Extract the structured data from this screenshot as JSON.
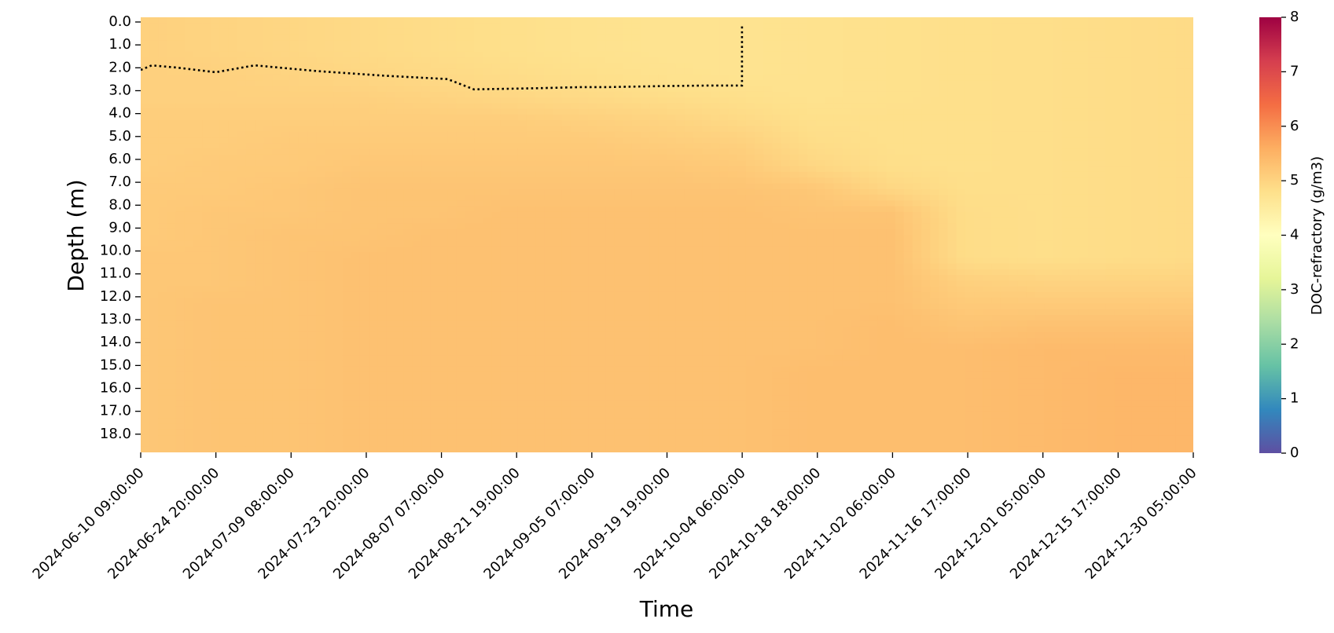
{
  "chart_data": {
    "type": "heatmap",
    "title": "",
    "xlabel": "Time",
    "ylabel": "Depth (m)",
    "colorbar": {
      "label": "DOC-refractory  (g/m3)",
      "min": 0,
      "max": 8,
      "ticks": [
        "0",
        "1",
        "2",
        "3",
        "4",
        "5",
        "6",
        "7",
        "8"
      ],
      "colormap": "Spectral_r",
      "stops": [
        {
          "v": 0,
          "color": "#5e4fa2"
        },
        {
          "v": 0.8,
          "color": "#3288bd"
        },
        {
          "v": 1.6,
          "color": "#66c2a5"
        },
        {
          "v": 2.4,
          "color": "#abdda4"
        },
        {
          "v": 3.2,
          "color": "#e6f598"
        },
        {
          "v": 4.0,
          "color": "#ffffbf"
        },
        {
          "v": 4.8,
          "color": "#fee08b"
        },
        {
          "v": 5.6,
          "color": "#fdae61"
        },
        {
          "v": 6.4,
          "color": "#f46d43"
        },
        {
          "v": 7.2,
          "color": "#d53e4f"
        },
        {
          "v": 8,
          "color": "#9e0142"
        }
      ]
    },
    "x_tick_labels": [
      "2024-06-10 09:00:00",
      "2024-06-24 20:00:00",
      "2024-07-09 08:00:00",
      "2024-07-23 20:00:00",
      "2024-08-07 07:00:00",
      "2024-08-21 19:00:00",
      "2024-09-05 07:00:00",
      "2024-09-19 19:00:00",
      "2024-10-04 06:00:00",
      "2024-10-18 18:00:00",
      "2024-11-02 06:00:00",
      "2024-11-16 17:00:00",
      "2024-12-01 05:00:00",
      "2024-12-15 17:00:00",
      "2024-12-30 05:00:00"
    ],
    "y_tick_labels": [
      "0.0",
      "1.0",
      "2.0",
      "3.0",
      "4.0",
      "5.0",
      "6.0",
      "7.0",
      "8.0",
      "9.0",
      "10.0",
      "11.0",
      "12.0",
      "13.0",
      "14.0",
      "15.0",
      "16.0",
      "17.0",
      "18.0"
    ],
    "depth_range_m": [
      0,
      19
    ],
    "time_range": [
      "2024-06-10 09:00:00",
      "2024-12-30 05:00:00"
    ],
    "time_profiles": [
      "2024-06-10",
      "2024-06-24",
      "2024-07-09",
      "2024-07-23",
      "2024-08-07",
      "2024-08-21",
      "2024-09-05",
      "2024-09-19",
      "2024-10-04",
      "2024-10-18",
      "2024-11-02",
      "2024-11-16",
      "2024-12-01",
      "2024-12-15",
      "2024-12-30"
    ],
    "depth_profile_m": [
      0.5,
      1.5,
      2.5,
      3.5,
      4.5,
      5.5,
      6.5,
      7.5,
      8.5,
      9.5,
      10.5,
      11.5,
      12.5,
      13.5,
      14.5,
      15.5,
      16.5,
      17.5,
      18.5
    ],
    "values": [
      [
        5.05,
        5.05,
        5.05,
        5.05,
        5.1,
        5.1,
        5.1,
        5.15,
        5.15,
        5.15,
        5.2,
        5.2,
        5.2,
        5.2,
        5.2,
        5.2,
        5.2,
        5.2,
        5.2
      ],
      [
        5.0,
        5.0,
        5.05,
        5.05,
        5.1,
        5.1,
        5.15,
        5.15,
        5.2,
        5.2,
        5.2,
        5.2,
        5.25,
        5.25,
        5.25,
        5.25,
        5.25,
        5.25,
        5.25
      ],
      [
        4.95,
        4.95,
        5.0,
        5.05,
        5.1,
        5.15,
        5.15,
        5.2,
        5.2,
        5.25,
        5.25,
        5.25,
        5.25,
        5.25,
        5.25,
        5.25,
        5.25,
        5.25,
        5.25
      ],
      [
        4.9,
        4.9,
        4.95,
        5.05,
        5.1,
        5.15,
        5.2,
        5.25,
        5.25,
        5.25,
        5.3,
        5.3,
        5.3,
        5.3,
        5.3,
        5.3,
        5.3,
        5.3,
        5.3
      ],
      [
        4.85,
        4.85,
        4.9,
        5.0,
        5.1,
        5.15,
        5.2,
        5.25,
        5.25,
        5.3,
        5.3,
        5.3,
        5.3,
        5.3,
        5.3,
        5.3,
        5.3,
        5.3,
        5.3
      ],
      [
        4.8,
        4.8,
        4.85,
        4.95,
        5.1,
        5.15,
        5.2,
        5.25,
        5.3,
        5.3,
        5.3,
        5.3,
        5.3,
        5.3,
        5.3,
        5.3,
        5.3,
        5.3,
        5.3
      ],
      [
        4.75,
        4.75,
        4.8,
        4.9,
        5.05,
        5.15,
        5.2,
        5.25,
        5.3,
        5.3,
        5.3,
        5.3,
        5.3,
        5.3,
        5.3,
        5.3,
        5.3,
        5.3,
        5.3
      ],
      [
        4.72,
        4.72,
        4.75,
        4.85,
        5.0,
        5.1,
        5.2,
        5.25,
        5.3,
        5.3,
        5.3,
        5.3,
        5.3,
        5.3,
        5.3,
        5.3,
        5.3,
        5.3,
        5.3
      ],
      [
        4.72,
        4.72,
        4.72,
        4.8,
        4.9,
        5.05,
        5.15,
        5.25,
        5.3,
        5.3,
        5.3,
        5.3,
        5.3,
        5.3,
        5.3,
        5.3,
        5.3,
        5.3,
        5.3
      ],
      [
        4.75,
        4.75,
        4.75,
        4.75,
        4.8,
        4.85,
        4.95,
        5.2,
        5.25,
        5.3,
        5.3,
        5.3,
        5.3,
        5.3,
        5.3,
        5.35,
        5.35,
        5.35,
        5.35
      ],
      [
        4.78,
        4.78,
        4.78,
        4.78,
        4.8,
        4.8,
        4.82,
        4.95,
        5.25,
        5.3,
        5.3,
        5.3,
        5.3,
        5.35,
        5.35,
        5.35,
        5.35,
        5.35,
        5.35
      ],
      [
        4.8,
        4.8,
        4.8,
        4.8,
        4.8,
        4.8,
        4.8,
        4.82,
        4.85,
        4.85,
        4.85,
        5.05,
        5.15,
        5.25,
        5.35,
        5.35,
        5.35,
        5.35,
        5.35
      ],
      [
        4.82,
        4.82,
        4.82,
        4.82,
        4.82,
        4.82,
        4.82,
        4.82,
        4.82,
        4.82,
        4.82,
        5.0,
        5.15,
        5.3,
        5.4,
        5.4,
        5.4,
        5.4,
        5.4
      ],
      [
        4.85,
        4.85,
        4.85,
        4.85,
        4.85,
        4.85,
        4.85,
        4.85,
        4.85,
        4.85,
        4.85,
        5.0,
        5.15,
        5.3,
        5.4,
        5.45,
        5.45,
        5.45,
        5.45
      ],
      [
        4.88,
        4.88,
        4.88,
        4.88,
        4.88,
        4.88,
        4.88,
        4.88,
        4.88,
        4.88,
        4.88,
        5.0,
        5.15,
        5.3,
        5.4,
        5.45,
        5.45,
        5.45,
        5.45
      ]
    ],
    "overlay_line": {
      "style": "dotted",
      "color": "#000000",
      "x_end": "2024-10-04 06:00:00",
      "depth_m": [
        2.3,
        2.1,
        2.2,
        2.4,
        2.1,
        2.35,
        2.55,
        2.7,
        3.15,
        3.1,
        3.05,
        3.05,
        3.0,
        2.98,
        2.98
      ],
      "time": [
        "2024-06-10 09:00:00",
        "2024-06-12 12:00:00",
        "2024-06-17 09:00:00",
        "2024-06-24 20:00:00",
        "2024-07-02 08:00:00",
        "2024-07-14 08:00:00",
        "2024-07-27 08:00:00",
        "2024-08-08 12:00:00",
        "2024-08-13 14:00:00",
        "2024-08-25 08:00:00",
        "2024-09-03 08:00:00",
        "2024-09-08 08:00:00",
        "2024-09-19 19:00:00",
        "2024-09-28 08:00:00",
        "2024-10-03 12:00:00"
      ],
      "drop_to_depth_m": 0.3
    }
  }
}
